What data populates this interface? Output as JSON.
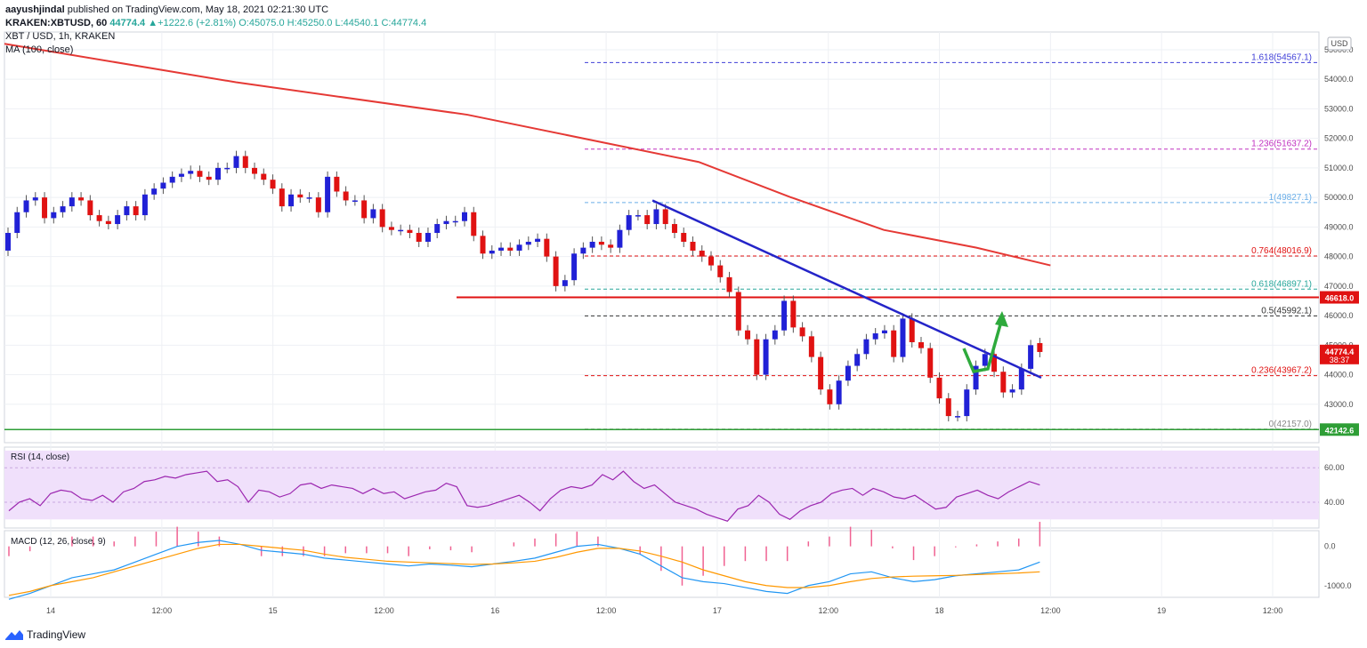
{
  "header": {
    "user": "aayushjindal",
    "published": "published on TradingView.com, May 18, 2021 02:21:30 UTC",
    "symbol": "KRAKEN:XBTUSD, 60",
    "last": "44774.4",
    "change": "+1222.6 (+2.81%)",
    "ohlc": "O:45075.0 H:45250.0 L:44540.1 C:44774.4"
  },
  "legend": {
    "pair": "XBT / USD, 1h, KRAKEN",
    "ma": "MA (100, close)",
    "rsi": "RSI (14, close)",
    "macd": "MACD (12, 26, close, 9)"
  },
  "currency": "USD",
  "brand": "TradingView",
  "colors": {
    "up": "#2121d6",
    "down": "#e01212",
    "ma": "#e53935",
    "trend": "#2424c8",
    "resistance": "#e01212",
    "support": "#2e9e36",
    "arrow": "#2eaa3c",
    "rsi_line": "#9c27b0",
    "rsi_band": "#f0e0fb",
    "macd": "#2196f3",
    "signal": "#ff9800",
    "hist": "#f06292"
  },
  "chart_data": {
    "type": "candlestick",
    "ylim": [
      41700,
      55600
    ],
    "y_ticks": [
      43000,
      44000,
      45000,
      46000,
      47000,
      48000,
      49000,
      50000,
      51000,
      52000,
      53000,
      54000,
      55000
    ],
    "y_tick_labels": [
      "43000.0",
      "44000.0",
      "45000.0",
      "46000.0",
      "47000.0",
      "48000.0",
      "49000.0",
      "50000.0",
      "51000.0",
      "52000.0",
      "53000.0",
      "54000.0",
      "55000.0"
    ],
    "x_labels": [
      "14",
      "12:00",
      "15",
      "12:00",
      "16",
      "12:00",
      "17",
      "12:00",
      "18",
      "12:00",
      "19",
      "12:00"
    ],
    "x_label_hours": [
      0,
      12,
      24,
      36,
      48,
      60,
      72,
      84,
      96,
      108,
      120,
      132
    ],
    "x_start_hour": -5,
    "x_end_hour": 137,
    "candles_close": [
      48800,
      49500,
      49900,
      50000,
      49300,
      49500,
      49700,
      50000,
      49900,
      49400,
      49200,
      49100,
      49400,
      49700,
      49400,
      50100,
      50300,
      50500,
      50700,
      50800,
      50900,
      50700,
      50600,
      51000,
      51000,
      51400,
      51000,
      50800,
      50600,
      50300,
      49700,
      50100,
      50000,
      50000,
      49500,
      50700,
      50200,
      49900,
      49900,
      49300,
      49600,
      49000,
      48900,
      48900,
      48800,
      48500,
      48800,
      49100,
      49200,
      49200,
      49500,
      48700,
      48100,
      48200,
      48300,
      48200,
      48400,
      48500,
      48600,
      48000,
      47000,
      47200,
      48100,
      48300,
      48500,
      48400,
      48300,
      48900,
      49400,
      49400,
      49100,
      49600,
      49100,
      48800,
      48500,
      48200,
      48000,
      47700,
      47300,
      46800,
      45500,
      45200,
      44000,
      45200,
      45500,
      46500,
      45600,
      45300,
      44600,
      43500,
      43000,
      43800,
      44300,
      44700,
      45200,
      45400,
      45500,
      44600,
      45900,
      45100,
      44900,
      43900,
      43200,
      42600,
      42600,
      43500,
      44300,
      44700,
      44100,
      43400,
      43500,
      44200,
      45000,
      44770
    ],
    "candles_open": [
      48200,
      48800,
      49500,
      49900,
      50000,
      49300,
      49500,
      49700,
      50000,
      49900,
      49400,
      49200,
      49100,
      49400,
      49700,
      49400,
      50100,
      50300,
      50500,
      50700,
      50800,
      50900,
      50700,
      50600,
      51000,
      51000,
      51400,
      51000,
      50800,
      50600,
      50300,
      49700,
      50100,
      50000,
      50000,
      49500,
      50700,
      50200,
      49900,
      49900,
      49300,
      49600,
      49000,
      48900,
      48900,
      48800,
      48500,
      48800,
      49100,
      49200,
      49200,
      49500,
      48700,
      48100,
      48200,
      48300,
      48200,
      48400,
      48500,
      48600,
      48000,
      47000,
      47200,
      48100,
      48300,
      48500,
      48400,
      48300,
      48900,
      49400,
      49400,
      49100,
      49600,
      49100,
      48800,
      48500,
      48200,
      48000,
      47700,
      47300,
      46800,
      45500,
      45200,
      44000,
      45200,
      45500,
      46500,
      45600,
      45300,
      44600,
      43500,
      43000,
      43800,
      44300,
      44700,
      45200,
      45400,
      45500,
      44600,
      45900,
      45100,
      44900,
      43900,
      43200,
      42600,
      42600,
      43500,
      44300,
      44700,
      44100,
      43400,
      43500,
      44200,
      45070
    ],
    "ma100": [
      [
        -5,
        55200
      ],
      [
        20,
        53900
      ],
      [
        45,
        52800
      ],
      [
        70,
        51200
      ],
      [
        80,
        50000
      ],
      [
        90,
        48900
      ],
      [
        100,
        48300
      ],
      [
        108,
        47700
      ]
    ],
    "fib_levels": [
      {
        "label": "1.618(54567.1)",
        "value": 54567.1,
        "color": "#3f3fd8"
      },
      {
        "label": "1.236(51637.2)",
        "value": 51637.2,
        "color": "#c030c0"
      },
      {
        "label": "1(49827.1)",
        "value": 49827.1,
        "color": "#6aaee8"
      },
      {
        "label": "0.764(48016.9)",
        "value": 48016.9,
        "color": "#e01212"
      },
      {
        "label": "0.618(46897.1)",
        "value": 46897.1,
        "color": "#26a69a"
      },
      {
        "label": "0.5(45992.1)",
        "value": 45992.1,
        "color": "#333333"
      },
      {
        "label": "0.236(43967.2)",
        "value": 43967.2,
        "color": "#e01212"
      },
      {
        "label": "0(42157.0)",
        "value": 42157.0,
        "color": "#888888"
      }
    ],
    "resistance": {
      "value": 46618.0,
      "label": "46618.0"
    },
    "support": {
      "value": 42142.6,
      "label": "42142.6"
    },
    "price_tag": {
      "value": 44774.4,
      "label": "44774.4",
      "countdown": "38:37"
    },
    "trendline": [
      [
        65,
        49900
      ],
      [
        107,
        43900
      ]
    ],
    "rsi": {
      "ylim": [
        25,
        72
      ],
      "ticks": [
        40,
        60
      ],
      "tick_labels": [
        "40.00",
        "60.00"
      ],
      "band": [
        30,
        70
      ],
      "values": [
        35,
        40,
        42,
        38,
        45,
        47,
        46,
        42,
        41,
        44,
        40,
        46,
        48,
        52,
        53,
        55,
        54,
        56,
        57,
        58,
        52,
        53,
        49,
        40,
        47,
        46,
        43,
        45,
        50,
        51,
        48,
        50,
        49,
        48,
        45,
        48,
        45,
        46,
        42,
        44,
        46,
        47,
        51,
        49,
        38,
        37,
        38,
        40,
        42,
        44,
        40,
        35,
        42,
        47,
        49,
        48,
        50,
        56,
        53,
        58,
        52,
        48,
        50,
        45,
        40,
        38,
        36,
        33,
        31,
        29,
        36,
        38,
        44,
        40,
        33,
        30,
        35,
        38,
        40,
        45,
        47,
        48,
        44,
        48,
        46,
        43,
        42,
        44,
        40,
        36,
        37,
        43,
        45,
        47,
        44,
        42,
        46,
        49,
        52,
        50
      ]
    },
    "macd": {
      "ylim": [
        -1300,
        400
      ],
      "ticks": [
        0,
        -1000
      ],
      "tick_labels": [
        "0.0",
        "-1000.0"
      ],
      "macd": [
        -1350,
        -1200,
        -1000,
        -800,
        -700,
        -600,
        -400,
        -200,
        0,
        100,
        150,
        50,
        -100,
        -150,
        -200,
        -300,
        -350,
        -400,
        -450,
        -500,
        -450,
        -480,
        -520,
        -450,
        -380,
        -300,
        -150,
        0,
        50,
        -50,
        -200,
        -500,
        -800,
        -900,
        -950,
        -1050,
        -1150,
        -1200,
        -1000,
        -900,
        -700,
        -650,
        -800,
        -900,
        -850,
        -750,
        -700,
        -650,
        -600,
        -400
      ],
      "signal": [
        -1250,
        -1150,
        -1000,
        -900,
        -800,
        -650,
        -500,
        -350,
        -200,
        -50,
        50,
        50,
        0,
        -50,
        -100,
        -200,
        -280,
        -330,
        -380,
        -400,
        -420,
        -440,
        -460,
        -450,
        -420,
        -380,
        -280,
        -150,
        -50,
        -50,
        -120,
        -250,
        -400,
        -600,
        -750,
        -900,
        -1000,
        -1050,
        -1050,
        -1000,
        -900,
        -820,
        -780,
        -760,
        -750,
        -740,
        -720,
        -700,
        -680,
        -650
      ],
      "hist": [
        0,
        0,
        0,
        0,
        0,
        0,
        0,
        0,
        0,
        0,
        0,
        0,
        0,
        0,
        0,
        0,
        0,
        0,
        0,
        0,
        0,
        0,
        0,
        0,
        0,
        0,
        0,
        0,
        0,
        0,
        0,
        0,
        0,
        0,
        0,
        0,
        0,
        0,
        0,
        0,
        0,
        0,
        0,
        0,
        0,
        0,
        0,
        0,
        0,
        0
      ]
    }
  }
}
